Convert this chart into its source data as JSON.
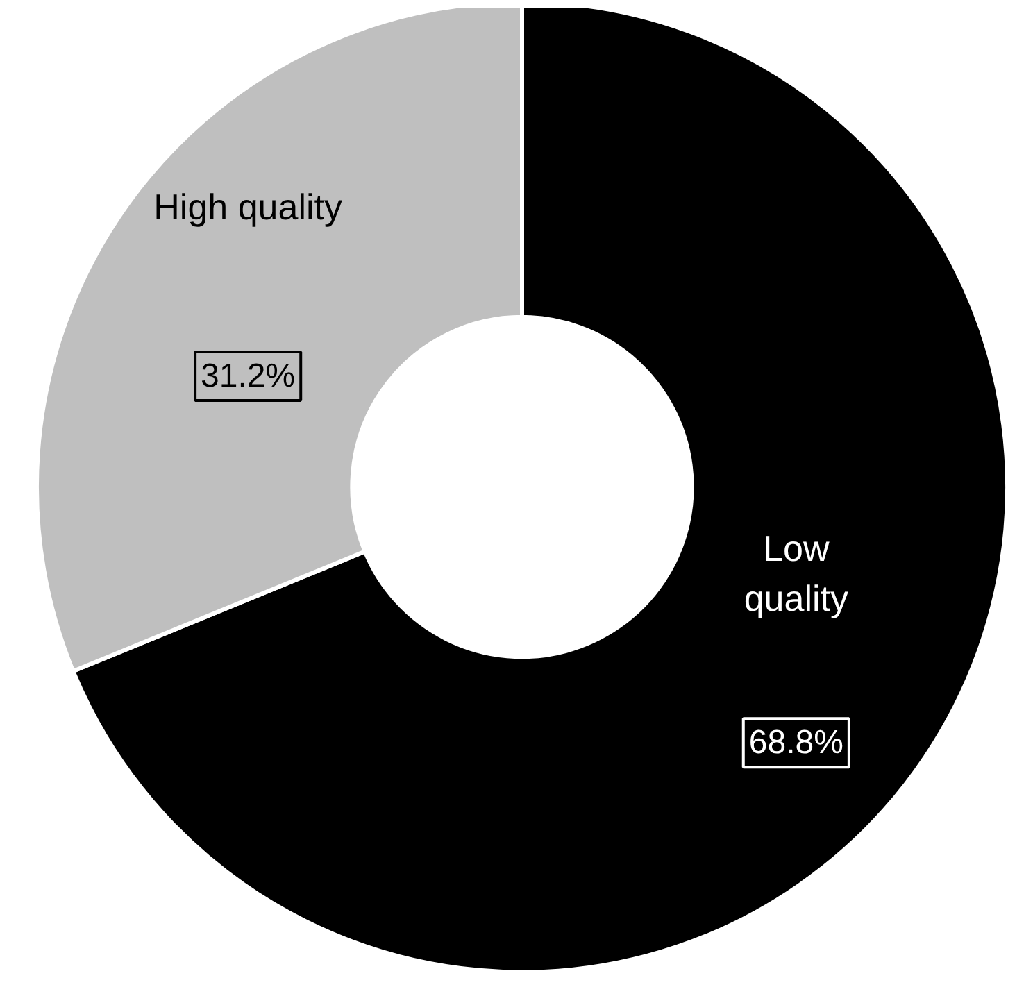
{
  "chart_data": {
    "type": "donut",
    "categories": [
      "Low quality",
      "High quality"
    ],
    "values": [
      68.8,
      31.2
    ],
    "colors": [
      "#000000",
      "#bfbfbf"
    ],
    "value_labels": [
      "68.8%",
      "31.2%"
    ]
  }
}
